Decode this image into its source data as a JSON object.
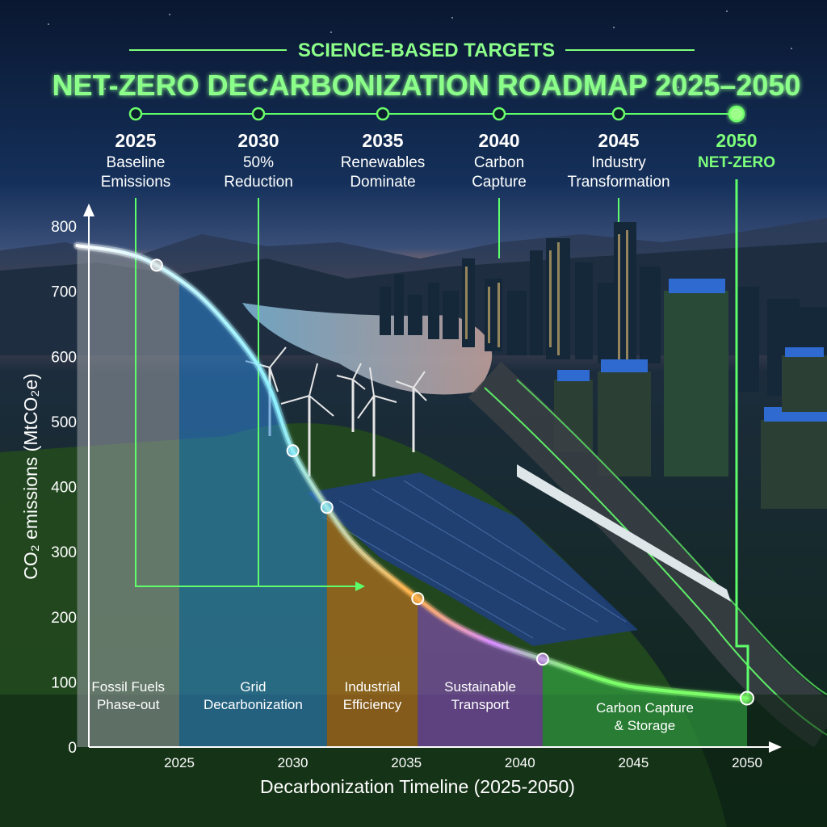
{
  "header": {
    "kicker": "SCIENCE-BASED TARGETS",
    "title": "NET-ZERO DECARBONIZATION ROADMAP 2025–2050"
  },
  "milestones": [
    {
      "year": "2025",
      "line1": "Baseline",
      "line2": "Emissions",
      "highlight": false
    },
    {
      "year": "2030",
      "line1": "50%",
      "line2": "Reduction",
      "highlight": false
    },
    {
      "year": "2035",
      "line1": "Renewables",
      "line2": "Dominate",
      "highlight": false
    },
    {
      "year": "2040",
      "line1": "Carbon",
      "line2": "Capture",
      "highlight": false
    },
    {
      "year": "2045",
      "line1": "Industry",
      "line2": "Transformation",
      "highlight": false
    },
    {
      "year": "2050",
      "line1": "NET-ZERO",
      "line2": "",
      "highlight": true
    }
  ],
  "colors": {
    "accent_green": "#5dff6a",
    "header_green": "#8cff8a",
    "phase_fossil": "#9aa0a6",
    "phase_grid": "#2f86d6",
    "phase_industrial": "#e07b1f",
    "phase_transport": "#9b4fd6",
    "phase_ccs": "#38b84a"
  },
  "chart_data": {
    "type": "area",
    "title": "NET-ZERO DECARBONIZATION ROADMAP 2025–2050",
    "xlabel": "Decarbonization Timeline (2025-2050)",
    "ylabel": "CO₂ emissions (MtCO₂e)",
    "ylim": [
      0,
      800
    ],
    "yticks": [
      "0",
      "100",
      "200",
      "300",
      "400",
      "500",
      "600",
      "700",
      "800"
    ],
    "xticks": [
      "2025",
      "2030",
      "2035",
      "2040",
      "2045",
      "2050"
    ],
    "grid": false,
    "series": [
      {
        "x": [
          2020.5,
          2022.5,
          2024,
          2026,
          2028,
          2029,
          2030,
          2031.5,
          2033,
          2035.5,
          2037,
          2038.8,
          2041,
          2044,
          2046,
          2050
        ],
        "y": [
          770,
          760,
          740,
          690,
          610,
          550,
          455,
          368,
          300,
          228,
          190,
          160,
          135,
          100,
          88,
          75
        ]
      }
    ],
    "highlight_points": [
      {
        "x": 2024,
        "y": 740
      },
      {
        "x": 2030,
        "y": 455
      },
      {
        "x": 2031.5,
        "y": 368
      },
      {
        "x": 2035.5,
        "y": 228
      },
      {
        "x": 2041,
        "y": 135
      },
      {
        "x": 2050,
        "y": 75
      }
    ],
    "phases": [
      {
        "label_line1": "Fossil Fuels",
        "label_line2": "Phase-out",
        "x0": 2020.5,
        "x1": 2025,
        "color_key": "phase_fossil"
      },
      {
        "label_line1": "Grid",
        "label_line2": "Decarbonization",
        "x0": 2025,
        "x1": 2031.5,
        "color_key": "phase_grid"
      },
      {
        "label_line1": "Industrial",
        "label_line2": "Efficiency",
        "x0": 2031.5,
        "x1": 2035.5,
        "color_key": "phase_industrial"
      },
      {
        "label_line1": "Sustainable",
        "label_line2": "Transport",
        "x0": 2035.5,
        "x1": 2041,
        "color_key": "phase_transport"
      },
      {
        "label_line1": "Carbon Capture",
        "label_line2": "& Storage",
        "x0": 2041,
        "x1": 2050,
        "color_key": "phase_ccs"
      }
    ]
  }
}
